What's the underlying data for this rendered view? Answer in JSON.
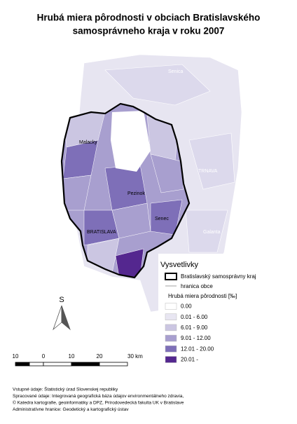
{
  "title": [
    "Hrubá miera pôrodnosti v obciach Bratislavského",
    "samosprávneho kraja v roku 2007"
  ],
  "map_labels": {
    "senica": "Senica",
    "malacky": "Malacky",
    "trnava": "TRNAVA",
    "pezinok": "Pezinok",
    "senec": "Senec",
    "bratislava": "BRATISLAVA",
    "galanta": "Galanta"
  },
  "legend": {
    "title": "Vysvetlivky",
    "region": "Bratislavský samosprávny kraj",
    "border": "hranica obce",
    "subtitle": "Hrubá miera pôrodnosti [‰]",
    "classes": [
      {
        "label": "0.00",
        "color": "#ffffff"
      },
      {
        "label": "0.01 - 6.00",
        "color": "#e8e6f2"
      },
      {
        "label": "6.01 - 9.00",
        "color": "#cbc6e2"
      },
      {
        "label": "9.01 - 12.00",
        "color": "#a89fcf"
      },
      {
        "label": "12.01 - 20.00",
        "color": "#7e6fb8"
      },
      {
        "label": "20.01 -",
        "color": "#54278f"
      }
    ]
  },
  "north": "S",
  "scale_labels": [
    "10",
    "0",
    "10",
    "20",
    "30 km"
  ],
  "sources": [
    "Vstupné údaje: Štatistický úrad Slovenskej republiky",
    "Spracované údaje: Integrovaná geografická báza údajov environmentálneho zdravia,",
    "© Katedra kartografie, geoinformatiky a DPZ, Prírodovedecká fakulta UK v Bratislave",
    "Administratívne hranice: Geodetický a kartografický ústav"
  ]
}
